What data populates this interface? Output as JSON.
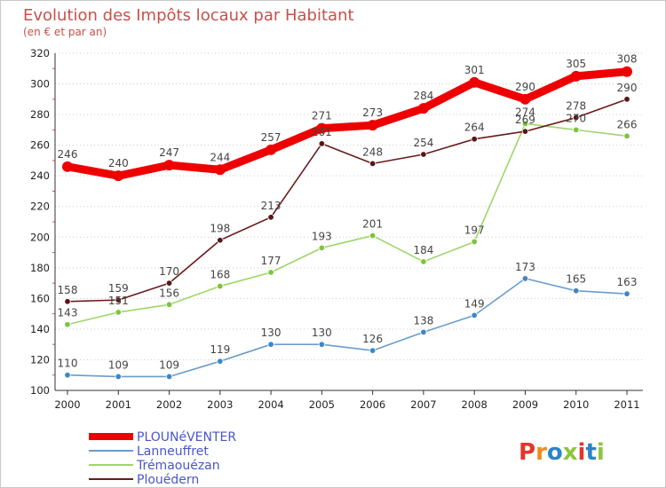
{
  "colors": {
    "title": "#c8504a",
    "subtitle": "#c8504a",
    "grid": "#cccccc",
    "axis": "#333333",
    "legend_text": "#4a55c8"
  },
  "brand": {
    "letters": [
      {
        "char": "P",
        "color": "#e4362c"
      },
      {
        "char": "r",
        "color": "#f08a1e"
      },
      {
        "char": "o",
        "color": "#2f83c8"
      },
      {
        "char": "x",
        "color": "#8cc63f"
      },
      {
        "char": "i",
        "color": "#e4362c"
      },
      {
        "char": "t",
        "color": "#2f83c8"
      },
      {
        "char": "i",
        "color": "#8cc63f"
      }
    ]
  },
  "chart_data": {
    "type": "line",
    "title": "Evolution des Impôts locaux par Habitant",
    "subtitle": "(en € et par an)",
    "x": [
      "2000",
      "2001",
      "2002",
      "2003",
      "2004",
      "2005",
      "2006",
      "2007",
      "2008",
      "2009",
      "2010",
      "2011"
    ],
    "ylim": [
      100,
      320
    ],
    "yticks": [
      100,
      120,
      140,
      160,
      180,
      200,
      220,
      240,
      260,
      280,
      300,
      320
    ],
    "grid": "horizontal dotted",
    "legend_position": "bottom-left",
    "series": [
      {
        "name": "PLOUNéVENTER",
        "color": "#ee0000",
        "marker": "#ee0000",
        "emphasis": true,
        "values": [
          246,
          240,
          247,
          244,
          257,
          271,
          273,
          284,
          301,
          290,
          305,
          308
        ]
      },
      {
        "name": "Lanneuffret",
        "color": "#6a9ccc",
        "marker": "#3f86c8",
        "values": [
          110,
          109,
          109,
          119,
          130,
          130,
          126,
          138,
          149,
          173,
          165,
          163
        ]
      },
      {
        "name": "Trémaouézan",
        "color": "#9ed66a",
        "marker": "#7cc43e",
        "values": [
          143,
          151,
          156,
          168,
          177,
          193,
          201,
          184,
          197,
          274,
          270,
          266
        ]
      },
      {
        "name": "Plouédern",
        "color": "#6b1a1a",
        "marker": "#5a1515",
        "values": [
          158,
          159,
          170,
          198,
          213,
          261,
          248,
          254,
          264,
          269,
          278,
          290
        ]
      }
    ]
  }
}
